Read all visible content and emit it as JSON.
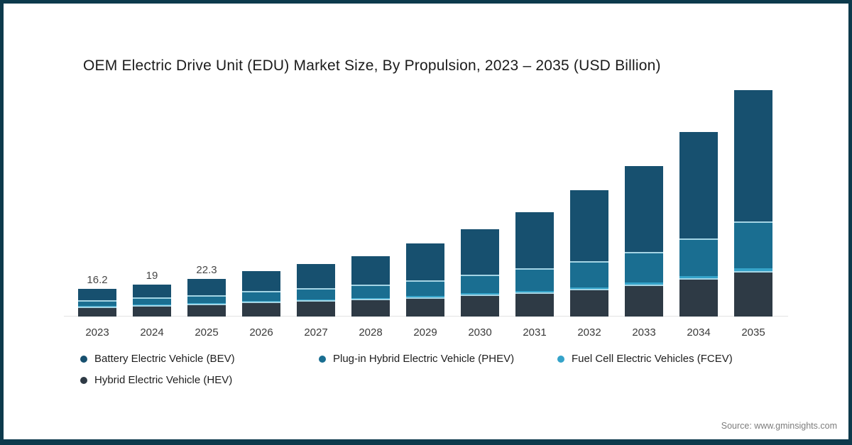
{
  "title": "OEM Electric Drive Unit (EDU) Market Size, By Propulsion, 2023 – 2035 (USD Billion)",
  "source": "Source: www.gminsights.com",
  "frame_color": "#0d3a4c",
  "separator_color": "#a4d4e4",
  "chart_data": {
    "type": "bar",
    "stacked": true,
    "title": "OEM Electric Drive Unit (EDU) Market Size, By Propulsion, 2023 – 2035 (USD Billion)",
    "unit": "USD Billion",
    "xlabel": "",
    "ylabel": "Market Size (USD Billion)",
    "ylim": [
      0,
      140
    ],
    "grid": false,
    "legend_position": "bottom",
    "categories": [
      "2023",
      "2024",
      "2025",
      "2026",
      "2027",
      "2028",
      "2029",
      "2030",
      "2031",
      "2032",
      "2033",
      "2034",
      "2035"
    ],
    "totals": [
      16.2,
      19,
      22.3,
      26.9,
      31.1,
      35.7,
      43.3,
      51.7,
      61.7,
      74.8,
      89,
      109.2,
      134
    ],
    "data_labels": [
      "16.2",
      "19",
      "22.3",
      "",
      "",
      "",
      "",
      "",
      "",
      "",
      "",
      "",
      ""
    ],
    "stack_order_bottom_to_top": [
      "HEV",
      "FCEV",
      "PHEV",
      "BEV"
    ],
    "series": [
      {
        "key": "BEV",
        "name": "Battery Electric Vehicle (BEV)",
        "color": "#17506f",
        "values": [
          6.4,
          7.8,
          9.5,
          11.8,
          14.2,
          16.8,
          21.9,
          26.9,
          33.3,
          41.9,
          50.7,
          62.8,
          77.8
        ]
      },
      {
        "key": "PHEV",
        "name": "Plug-in Hybrid Electric Vehicle (PHEV)",
        "color": "#1a6e91",
        "values": [
          3.6,
          4.2,
          4.9,
          5.9,
          6.8,
          7.8,
          9.3,
          11.1,
          13.2,
          15.5,
          18.3,
          22.4,
          27.8
        ]
      },
      {
        "key": "FCEV",
        "name": "Fuel Cell Electric Vehicles (FCEV)",
        "color": "#35a3c9",
        "values": [
          0.3,
          0.4,
          0.4,
          0.5,
          0.5,
          0.6,
          0.7,
          0.8,
          0.9,
          1.0,
          1.1,
          1.2,
          1.3
        ]
      },
      {
        "key": "HEV",
        "name": "Hybrid Electric Vehicle (HEV)",
        "color": "#2e3a45",
        "values": [
          5.9,
          6.6,
          7.5,
          8.7,
          9.6,
          10.5,
          11.4,
          12.9,
          14.3,
          16.4,
          18.9,
          22.8,
          27.1
        ]
      }
    ]
  }
}
